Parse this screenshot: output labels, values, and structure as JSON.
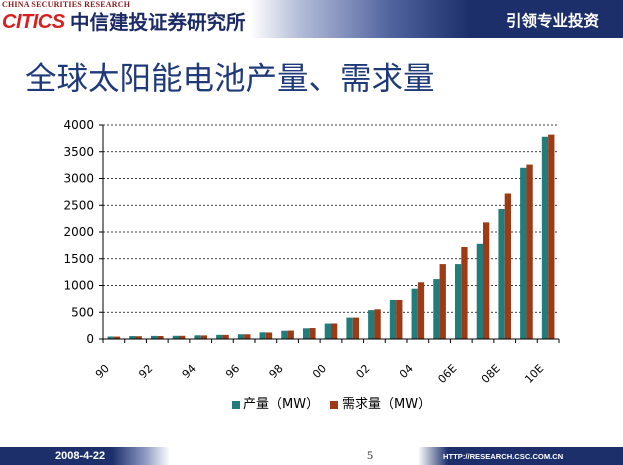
{
  "header": {
    "tagline_en": "CHINA SECURITIES RESEARCH",
    "logo_text": "CITICS",
    "org_name": "中信建投证券研究所",
    "slogan": "引领专业投资"
  },
  "colors": {
    "navy": "#1c2f6b",
    "title": "#1f3a7a",
    "logo_red": "#d71f1f",
    "org": "#1b2a66"
  },
  "chart_data": {
    "type": "bar",
    "title": "全球太阳能电池产量、需求量",
    "x": [
      1990,
      1991,
      1992,
      1993,
      1994,
      1995,
      1996,
      1997,
      1998,
      1999,
      2000,
      2001,
      2002,
      2003,
      2004,
      2005,
      2006,
      2007,
      2008,
      2009,
      2010
    ],
    "xticks": [
      1990,
      1992,
      1994,
      1996,
      1998,
      2000,
      2002,
      2004,
      2006,
      2008,
      2010
    ],
    "xtick_labels": [
      "90",
      "92",
      "94",
      "96",
      "98",
      "00",
      "02",
      "04",
      "06E",
      "08E",
      "10E"
    ],
    "ylim": [
      0,
      4000
    ],
    "yticks": [
      0,
      500,
      1000,
      1500,
      2000,
      2500,
      3000,
      3500,
      4000
    ],
    "grid": true,
    "series": [
      {
        "name": "产量（MW）",
        "color": "#227c7c",
        "values": [
          47,
          55,
          58,
          60,
          69,
          78,
          89,
          125,
          155,
          200,
          288,
          400,
          540,
          730,
          940,
          1120,
          1400,
          1780,
          2430,
          3200,
          3780
        ]
      },
      {
        "name": "需求量（MW）",
        "color": "#9c3b16",
        "values": [
          45,
          52,
          56,
          60,
          67,
          77,
          88,
          122,
          158,
          205,
          290,
          400,
          555,
          730,
          1060,
          1400,
          1720,
          2180,
          2720,
          3260,
          3820
        ]
      }
    ]
  },
  "footer": {
    "date": "2008-4-22",
    "page_number": "5",
    "url": "HTTP://RESEARCH.CSC.COM.CN"
  }
}
